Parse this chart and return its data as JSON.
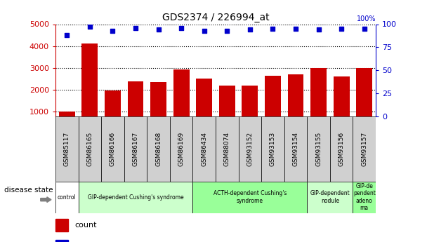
{
  "title": "GDS2374 / 226994_at",
  "samples": [
    "GSM85117",
    "GSM86165",
    "GSM86166",
    "GSM86167",
    "GSM86168",
    "GSM86169",
    "GSM86434",
    "GSM88074",
    "GSM93152",
    "GSM93153",
    "GSM93154",
    "GSM93155",
    "GSM93156",
    "GSM93157"
  ],
  "counts": [
    1020,
    4130,
    1960,
    2400,
    2350,
    2920,
    2520,
    2200,
    2190,
    2660,
    2720,
    2990,
    2620,
    2990
  ],
  "percentiles": [
    88,
    97,
    93,
    96,
    94,
    96,
    93,
    93,
    94,
    95,
    95,
    94,
    95,
    95
  ],
  "bar_color": "#cc0000",
  "dot_color": "#0000cc",
  "ylim_left": [
    800,
    5000
  ],
  "ylim_right": [
    0,
    100
  ],
  "yticks_left": [
    1000,
    2000,
    3000,
    4000,
    5000
  ],
  "yticks_right": [
    0,
    25,
    50,
    75,
    100
  ],
  "disease_groups": [
    {
      "label": "control",
      "start": 0,
      "end": 1,
      "color": "#ffffff"
    },
    {
      "label": "GIP-dependent Cushing's syndrome",
      "start": 1,
      "end": 6,
      "color": "#ccffcc"
    },
    {
      "label": "ACTH-dependent Cushing's\nsyndrome",
      "start": 6,
      "end": 11,
      "color": "#99ff99"
    },
    {
      "label": "GIP-dependent\nnodule",
      "start": 11,
      "end": 13,
      "color": "#ccffcc"
    },
    {
      "label": "GIP-de\npendent\nadeno\nma",
      "start": 13,
      "end": 14,
      "color": "#99ff99"
    }
  ],
  "legend_count_color": "#cc0000",
  "legend_pct_color": "#0000cc",
  "background_color": "#ffffff",
  "tick_label_color_left": "#cc0000",
  "tick_label_color_right": "#0000cc",
  "cell_bg": "#d0d0d0",
  "cell_edge": "#000000"
}
